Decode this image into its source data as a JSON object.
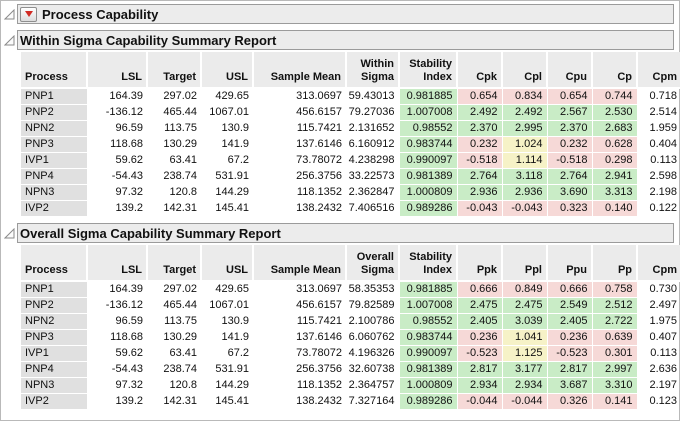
{
  "window": {
    "title": "Process Capability"
  },
  "palette": {
    "green": "#c9ecc6",
    "pink": "#f6d9d7",
    "yellow": "#f6f2c7",
    "header_bg": "#ebebeb",
    "row_label_bg": "#e0e0e0",
    "red_triangle": "#d12b23"
  },
  "sections": [
    {
      "title": "Within Sigma Capability Summary Report",
      "columns": [
        "Process",
        "LSL",
        "Target",
        "USL",
        "Sample Mean",
        "Within Sigma",
        "Stability Index",
        "Cpk",
        "Cpl",
        "Cpu",
        "Cp",
        "Cpm"
      ],
      "rows": [
        {
          "cells": [
            "PNP1",
            "164.39",
            "297.02",
            "429.65",
            "313.0697",
            "59.43013",
            "0.981885",
            "0.654",
            "0.834",
            "0.654",
            "0.744",
            "0.718"
          ],
          "highlights": [
            null,
            null,
            null,
            null,
            null,
            null,
            "green",
            "pink",
            "pink",
            "pink",
            "pink",
            null
          ]
        },
        {
          "cells": [
            "PNP2",
            "-136.12",
            "465.44",
            "1067.01",
            "456.6157",
            "79.27036",
            "1.007008",
            "2.492",
            "2.492",
            "2.567",
            "2.530",
            "2.514"
          ],
          "highlights": [
            null,
            null,
            null,
            null,
            null,
            null,
            "green",
            "green",
            "green",
            "green",
            "green",
            null
          ]
        },
        {
          "cells": [
            "NPN2",
            "96.59",
            "113.75",
            "130.9",
            "115.7421",
            "2.131652",
            "0.98552",
            "2.370",
            "2.995",
            "2.370",
            "2.683",
            "1.959"
          ],
          "highlights": [
            null,
            null,
            null,
            null,
            null,
            null,
            "green",
            "green",
            "green",
            "green",
            "green",
            null
          ]
        },
        {
          "cells": [
            "PNP3",
            "118.68",
            "130.29",
            "141.9",
            "137.6146",
            "6.160912",
            "0.983744",
            "0.232",
            "1.024",
            "0.232",
            "0.628",
            "0.404"
          ],
          "highlights": [
            null,
            null,
            null,
            null,
            null,
            null,
            "green",
            "pink",
            "yellow",
            "pink",
            "pink",
            null
          ]
        },
        {
          "cells": [
            "IVP1",
            "59.62",
            "63.41",
            "67.2",
            "73.78072",
            "4.238298",
            "0.990097",
            "-0.518",
            "1.114",
            "-0.518",
            "0.298",
            "0.113"
          ],
          "highlights": [
            null,
            null,
            null,
            null,
            null,
            null,
            "green",
            "pink",
            "yellow",
            "pink",
            "pink",
            null
          ]
        },
        {
          "cells": [
            "PNP4",
            "-54.43",
            "238.74",
            "531.91",
            "256.3756",
            "33.22573",
            "0.981389",
            "2.764",
            "3.118",
            "2.764",
            "2.941",
            "2.598"
          ],
          "highlights": [
            null,
            null,
            null,
            null,
            null,
            null,
            "green",
            "green",
            "green",
            "green",
            "green",
            null
          ]
        },
        {
          "cells": [
            "NPN3",
            "97.32",
            "120.8",
            "144.29",
            "118.1352",
            "2.362847",
            "1.000809",
            "2.936",
            "2.936",
            "3.690",
            "3.313",
            "2.198"
          ],
          "highlights": [
            null,
            null,
            null,
            null,
            null,
            null,
            "green",
            "green",
            "green",
            "green",
            "green",
            null
          ]
        },
        {
          "cells": [
            "IVP2",
            "139.2",
            "142.31",
            "145.41",
            "138.2432",
            "7.406516",
            "0.989286",
            "-0.043",
            "-0.043",
            "0.323",
            "0.140",
            "0.122"
          ],
          "highlights": [
            null,
            null,
            null,
            null,
            null,
            null,
            "green",
            "pink",
            "pink",
            "pink",
            "pink",
            null
          ]
        }
      ]
    },
    {
      "title": "Overall Sigma Capability Summary Report",
      "columns": [
        "Process",
        "LSL",
        "Target",
        "USL",
        "Sample Mean",
        "Overall Sigma",
        "Stability Index",
        "Ppk",
        "Ppl",
        "Ppu",
        "Pp",
        "Cpm"
      ],
      "rows": [
        {
          "cells": [
            "PNP1",
            "164.39",
            "297.02",
            "429.65",
            "313.0697",
            "58.35353",
            "0.981885",
            "0.666",
            "0.849",
            "0.666",
            "0.758",
            "0.730"
          ],
          "highlights": [
            null,
            null,
            null,
            null,
            null,
            null,
            "green",
            "pink",
            "pink",
            "pink",
            "pink",
            null
          ]
        },
        {
          "cells": [
            "PNP2",
            "-136.12",
            "465.44",
            "1067.01",
            "456.6157",
            "79.82589",
            "1.007008",
            "2.475",
            "2.475",
            "2.549",
            "2.512",
            "2.497"
          ],
          "highlights": [
            null,
            null,
            null,
            null,
            null,
            null,
            "green",
            "green",
            "green",
            "green",
            "green",
            null
          ]
        },
        {
          "cells": [
            "NPN2",
            "96.59",
            "113.75",
            "130.9",
            "115.7421",
            "2.100786",
            "0.98552",
            "2.405",
            "3.039",
            "2.405",
            "2.722",
            "1.975"
          ],
          "highlights": [
            null,
            null,
            null,
            null,
            null,
            null,
            "green",
            "green",
            "green",
            "green",
            "green",
            null
          ]
        },
        {
          "cells": [
            "PNP3",
            "118.68",
            "130.29",
            "141.9",
            "137.6146",
            "6.060762",
            "0.983744",
            "0.236",
            "1.041",
            "0.236",
            "0.639",
            "0.407"
          ],
          "highlights": [
            null,
            null,
            null,
            null,
            null,
            null,
            "green",
            "pink",
            "yellow",
            "pink",
            "pink",
            null
          ]
        },
        {
          "cells": [
            "IVP1",
            "59.62",
            "63.41",
            "67.2",
            "73.78072",
            "4.196326",
            "0.990097",
            "-0.523",
            "1.125",
            "-0.523",
            "0.301",
            "0.113"
          ],
          "highlights": [
            null,
            null,
            null,
            null,
            null,
            null,
            "green",
            "pink",
            "yellow",
            "pink",
            "pink",
            null
          ]
        },
        {
          "cells": [
            "PNP4",
            "-54.43",
            "238.74",
            "531.91",
            "256.3756",
            "32.60738",
            "0.981389",
            "2.817",
            "3.177",
            "2.817",
            "2.997",
            "2.636"
          ],
          "highlights": [
            null,
            null,
            null,
            null,
            null,
            null,
            "green",
            "green",
            "green",
            "green",
            "green",
            null
          ]
        },
        {
          "cells": [
            "NPN3",
            "97.32",
            "120.8",
            "144.29",
            "118.1352",
            "2.364757",
            "1.000809",
            "2.934",
            "2.934",
            "3.687",
            "3.310",
            "2.197"
          ],
          "highlights": [
            null,
            null,
            null,
            null,
            null,
            null,
            "green",
            "green",
            "green",
            "green",
            "green",
            null
          ]
        },
        {
          "cells": [
            "IVP2",
            "139.2",
            "142.31",
            "145.41",
            "138.2432",
            "7.327164",
            "0.989286",
            "-0.044",
            "-0.044",
            "0.326",
            "0.141",
            "0.123"
          ],
          "highlights": [
            null,
            null,
            null,
            null,
            null,
            null,
            "green",
            "pink",
            "pink",
            "pink",
            "pink",
            null
          ]
        }
      ]
    }
  ]
}
